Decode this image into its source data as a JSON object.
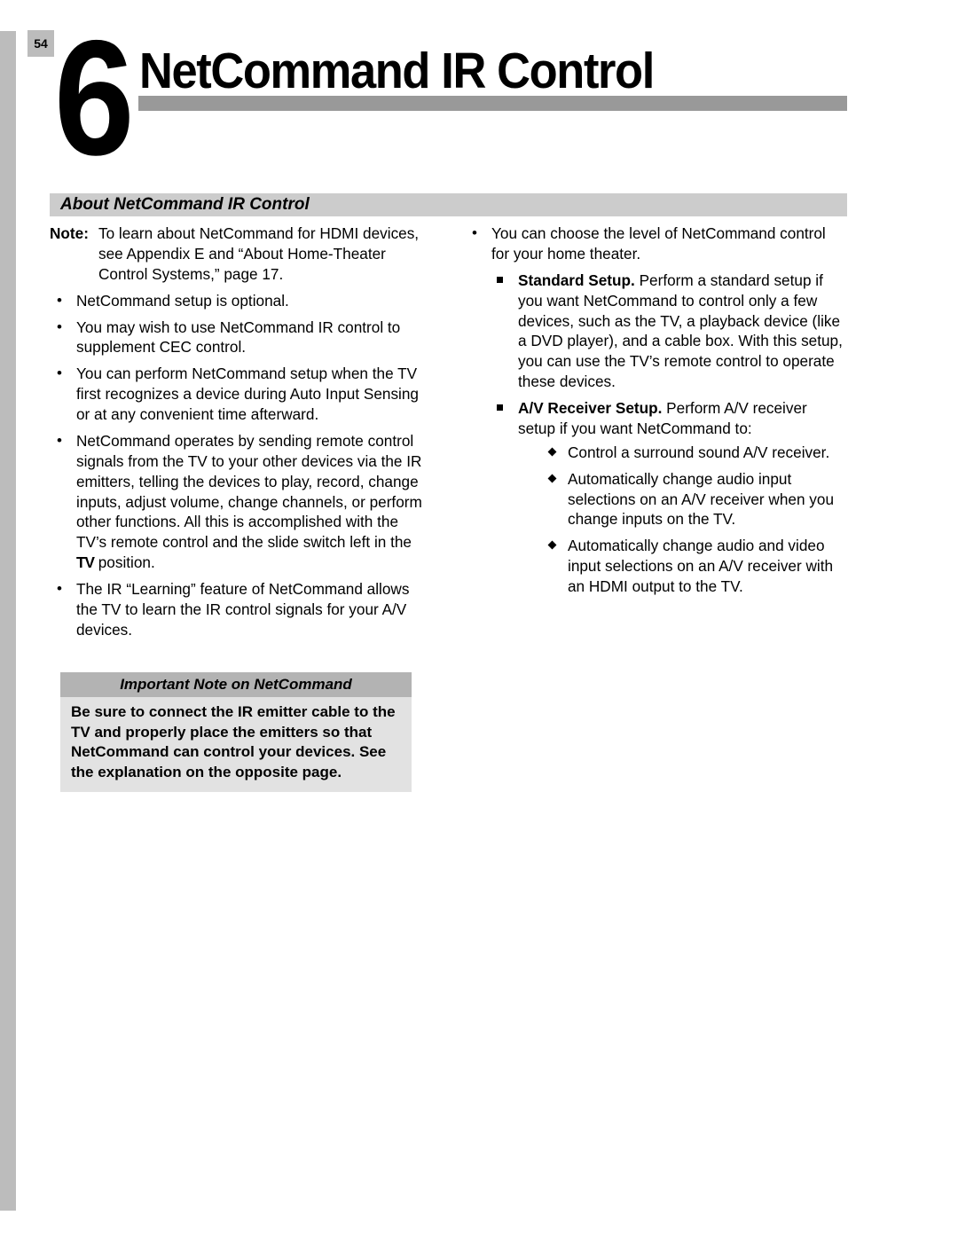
{
  "page_number": "54",
  "chapter_number": "6",
  "chapter_title": "NetCommand IR Control",
  "section_title": "About NetCommand IR Control",
  "colors": {
    "spine": "#bcbcbc",
    "title_bar": "#999999",
    "section_bar": "#cccccc",
    "callout_title_bg": "#b3b3b3",
    "callout_body_bg": "#e2e2e2",
    "text": "#000000",
    "background": "#ffffff"
  },
  "left": {
    "note_label": "Note:",
    "note_text": "To learn about NetCommand for HDMI devices, see Appendix E and “About Home-Theater Control Systems,” page 17.",
    "bullets": [
      "NetCommand setup is optional.",
      "You may wish to use NetCommand IR control to supplement CEC control.",
      "You can perform NetCommand setup when the TV first recognizes a device during Auto Input Sensing or at any convenient time afterward.",
      "NetCommand operates by sending remote control signals from the TV to your other devices via the IR emitters, telling the devices to play, record, change inputs, adjust volume, change channels, or perform other functions.  All this is accomplished with the TV’s remote control and the slide switch left in the ",
      "The IR “Learning” feature of NetCommand allows the TV to learn the IR control signals for your A/V devices."
    ],
    "tv_label": "TV",
    "tv_suffix": " position.",
    "callout_title": "Important Note on NetCommand",
    "callout_body": "Be sure to connect the IR emitter cable to the TV and properly place the emitters so that NetCommand can control your devices.  See the explanation on the opposite page."
  },
  "right": {
    "top_bullet": "You can choose the level of NetCommand control for your home theater.",
    "standard_bold": "Standard Setup.",
    "standard_rest": "  Perform a standard setup if you want NetCommand to control only a few devices, such as the TV, a playback device (like a DVD player), and a cable box.  With this setup, you can use the TV’s remote control to operate these devices.",
    "av_bold": "A/V Receiver Setup.",
    "av_rest": "  Perform A/V receiver setup if you want NetCommand to:",
    "diamonds": [
      "Control a surround sound A/V receiver.",
      "Automatically change audio input selections on an A/V receiver when you change inputs on the TV.",
      "Automatically change audio and video input selections on an A/V receiver with an HDMI output to the TV."
    ]
  }
}
